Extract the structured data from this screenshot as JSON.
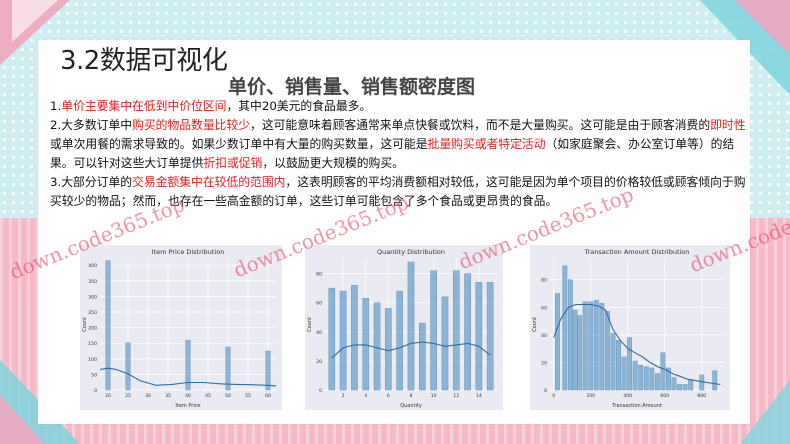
{
  "slide": {
    "section_title": "3.2数据可视化",
    "main_title": "单价、销售量、销售额密度图"
  },
  "paragraphs": [
    [
      {
        "t": "1."
      },
      {
        "t": "单价主要集中在低到中价位区间",
        "hl": true
      },
      {
        "t": "，其中20美元的食品最多。"
      }
    ],
    [
      {
        "t": "2.大多数订单中"
      },
      {
        "t": "购买的物品数量比较少",
        "hl": true
      },
      {
        "t": "，这可能意味着顾客通常来单点快餐或饮料，而不是大量购买。这可能是由于顾客消费的"
      },
      {
        "t": "即时性",
        "hl": true
      },
      {
        "t": "或单次用餐的需求导致的。如果少数订单中有大量的购买数量，这可能是"
      },
      {
        "t": "批量购买或者特定活动",
        "hl": true
      },
      {
        "t": "（如家庭聚会、办公室订单等）的结果。可以针对这些大订单提供"
      },
      {
        "t": "折扣或促销",
        "hl": true
      },
      {
        "t": "，以鼓励更大规模的购买。"
      }
    ],
    [
      {
        "t": "3.大部分订单的"
      },
      {
        "t": "交易金额集中在较低的范围内",
        "hl": true
      },
      {
        "t": "，这表明顾客的平均消费额相对较低，这可能是因为单个项目的价格较低或顾客倾向于购买较少的物品；然而，也存在一些高金额的订单，这些订单可能包含了多个食品或更昂贵的食品。"
      }
    ]
  ],
  "colors": {
    "highlight": "#e02020",
    "bar": "#7aa9cf",
    "bar_edge": "#5b8fba",
    "kde": "#2f6da3",
    "plot_bg": "#eaeaf2",
    "bg_teal": "#cfeef2",
    "bg_pink": "#f6b9c8"
  },
  "watermarks": [
    "down.code365.top",
    "down.code365.top",
    "down.code365.top",
    "down.code365.top"
  ],
  "chart_data": [
    {
      "type": "bar",
      "title": "Item Price Distribution",
      "xlabel": "Item Price",
      "ylabel": "Count",
      "xlim": [
        18,
        62
      ],
      "ylim": [
        0,
        420
      ],
      "xticks": [
        20,
        25,
        30,
        35,
        40,
        45,
        50,
        55,
        60
      ],
      "yticks": [
        0,
        50,
        100,
        150,
        200,
        250,
        300,
        350,
        400
      ],
      "bars": [
        {
          "x": 20,
          "value": 415
        },
        {
          "x": 25,
          "value": 152
        },
        {
          "x": 40,
          "value": 160
        },
        {
          "x": 50,
          "value": 138
        },
        {
          "x": 60,
          "value": 125
        }
      ],
      "bar_width": 1.1,
      "kde": [
        [
          18,
          66
        ],
        [
          20,
          70
        ],
        [
          22,
          66
        ],
        [
          25,
          52
        ],
        [
          28,
          30
        ],
        [
          32,
          15
        ],
        [
          36,
          18
        ],
        [
          40,
          24
        ],
        [
          44,
          24
        ],
        [
          48,
          20
        ],
        [
          52,
          18
        ],
        [
          56,
          17
        ],
        [
          60,
          15
        ],
        [
          62,
          13
        ]
      ]
    },
    {
      "type": "bar",
      "title": "Quantity Distribution",
      "xlabel": "Quantity",
      "ylabel": "Count",
      "xlim": [
        0.4,
        15.6
      ],
      "ylim": [
        0,
        90
      ],
      "xticks": [
        2,
        4,
        6,
        8,
        10,
        12,
        14
      ],
      "yticks": [
        0,
        20,
        40,
        60,
        80
      ],
      "bars": [
        {
          "x": 1,
          "value": 70
        },
        {
          "x": 2,
          "value": 68
        },
        {
          "x": 3,
          "value": 72
        },
        {
          "x": 4,
          "value": 63
        },
        {
          "x": 5,
          "value": 60
        },
        {
          "x": 6,
          "value": 56
        },
        {
          "x": 7,
          "value": 68
        },
        {
          "x": 8,
          "value": 88
        },
        {
          "x": 9,
          "value": 46
        },
        {
          "x": 10,
          "value": 82
        },
        {
          "x": 11,
          "value": 64
        },
        {
          "x": 12,
          "value": 82
        },
        {
          "x": 13,
          "value": 80
        },
        {
          "x": 14,
          "value": 74
        },
        {
          "x": 15,
          "value": 74
        }
      ],
      "bar_width": 0.55,
      "kde": [
        [
          1,
          22
        ],
        [
          2,
          29
        ],
        [
          3,
          31
        ],
        [
          4,
          31
        ],
        [
          5,
          29
        ],
        [
          6,
          27
        ],
        [
          7,
          29
        ],
        [
          8,
          32
        ],
        [
          9,
          33
        ],
        [
          10,
          32
        ],
        [
          11,
          30
        ],
        [
          12,
          31
        ],
        [
          13,
          32
        ],
        [
          14,
          30
        ],
        [
          15,
          24
        ]
      ]
    },
    {
      "type": "bar",
      "title": "Transaction Amount Distribution",
      "xlabel": "Transaction Amount",
      "ylabel": "Count",
      "xlim": [
        -20,
        920
      ],
      "ylim": [
        0,
        95
      ],
      "xticks": [
        0,
        200,
        400,
        600,
        800
      ],
      "yticks": [
        0,
        20,
        40,
        60,
        80
      ],
      "bars": [
        {
          "x": 20,
          "value": 70
        },
        {
          "x": 60,
          "value": 90
        },
        {
          "x": 90,
          "value": 80
        },
        {
          "x": 115,
          "value": 58
        },
        {
          "x": 140,
          "value": 54
        },
        {
          "x": 170,
          "value": 64
        },
        {
          "x": 200,
          "value": 64
        },
        {
          "x": 230,
          "value": 65
        },
        {
          "x": 260,
          "value": 63
        },
        {
          "x": 290,
          "value": 57
        },
        {
          "x": 320,
          "value": 41
        },
        {
          "x": 350,
          "value": 36
        },
        {
          "x": 380,
          "value": 24
        },
        {
          "x": 410,
          "value": 38
        },
        {
          "x": 440,
          "value": 21
        },
        {
          "x": 470,
          "value": 18
        },
        {
          "x": 500,
          "value": 17
        },
        {
          "x": 530,
          "value": 16
        },
        {
          "x": 560,
          "value": 12
        },
        {
          "x": 590,
          "value": 27
        },
        {
          "x": 620,
          "value": 16
        },
        {
          "x": 650,
          "value": 9
        },
        {
          "x": 680,
          "value": 4
        },
        {
          "x": 710,
          "value": 4
        },
        {
          "x": 740,
          "value": 7
        },
        {
          "x": 800,
          "value": 11
        },
        {
          "x": 870,
          "value": 14
        }
      ],
      "bar_width": 24,
      "kde": [
        [
          0,
          38
        ],
        [
          40,
          52
        ],
        [
          80,
          60
        ],
        [
          120,
          62
        ],
        [
          160,
          62
        ],
        [
          200,
          62
        ],
        [
          240,
          61
        ],
        [
          280,
          58
        ],
        [
          320,
          44
        ],
        [
          360,
          36
        ],
        [
          400,
          30
        ],
        [
          440,
          27
        ],
        [
          480,
          24
        ],
        [
          520,
          20
        ],
        [
          560,
          17
        ],
        [
          600,
          15
        ],
        [
          640,
          12
        ],
        [
          680,
          10
        ],
        [
          720,
          8
        ],
        [
          760,
          7
        ],
        [
          800,
          6
        ],
        [
          850,
          5
        ],
        [
          900,
          4
        ]
      ]
    }
  ]
}
